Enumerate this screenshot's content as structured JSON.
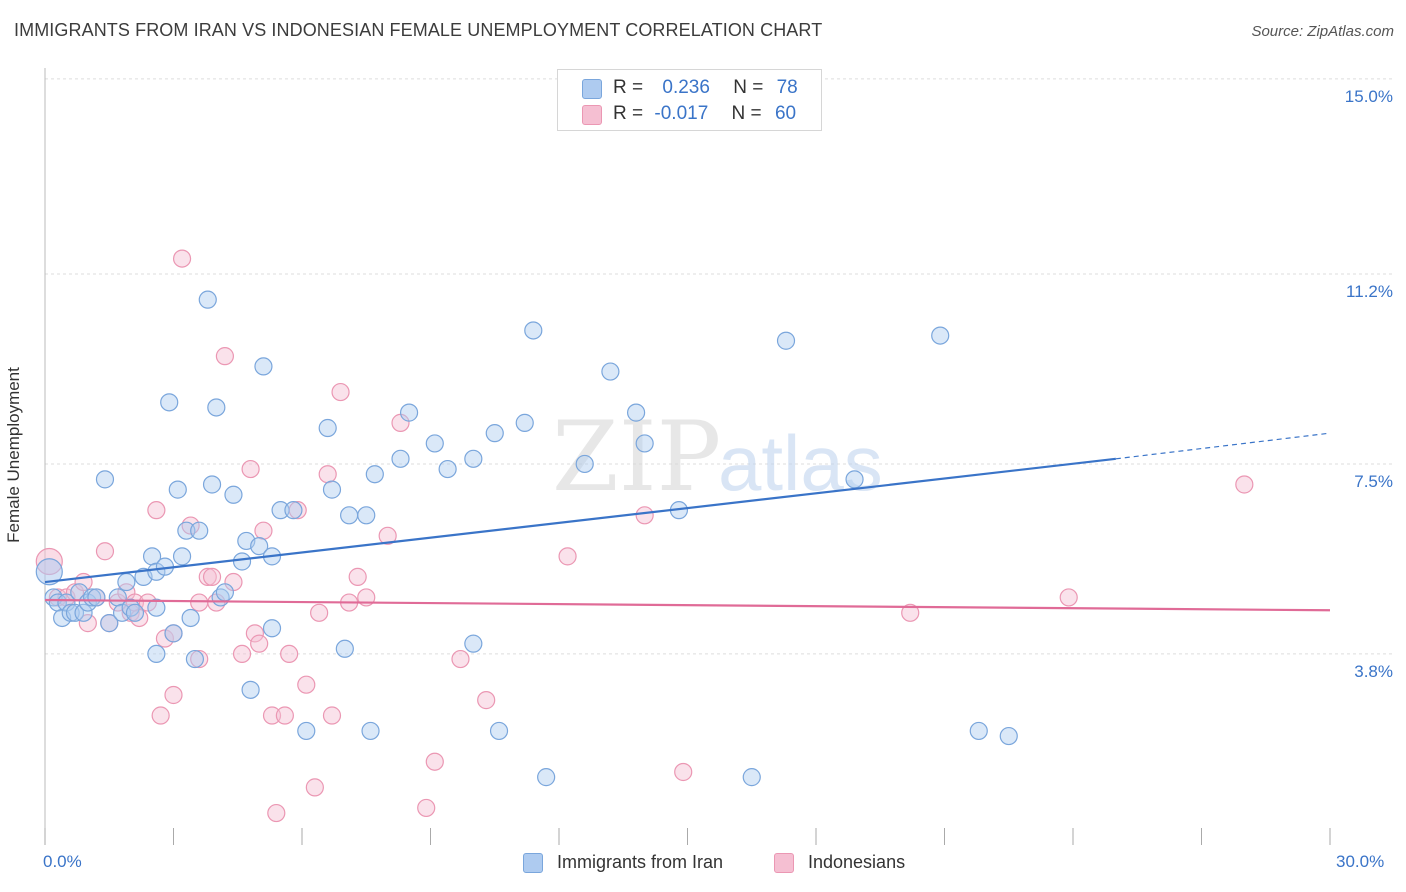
{
  "header": {
    "title": "IMMIGRANTS FROM IRAN VS INDONESIAN FEMALE UNEMPLOYMENT CORRELATION CHART",
    "source": "Source: ZipAtlas.com"
  },
  "watermark": {
    "zip": "ZIP",
    "atlas": "atlas"
  },
  "legend": {
    "rows": [
      {
        "r_label": "R =",
        "r_value": "0.236",
        "n_label": "N =",
        "n_value": "78"
      },
      {
        "r_label": "R =",
        "r_value": "-0.017",
        "n_label": "N =",
        "n_value": "60"
      }
    ]
  },
  "colors": {
    "blue_fill": "#aecbf0",
    "blue_stroke": "#7aa6dc",
    "blue_line": "#3a74c8",
    "pink_fill": "#f5bfd2",
    "pink_stroke": "#eb97b3",
    "pink_line": "#e06b97",
    "grid": "#dddddd",
    "axis_text": "#3a74c8"
  },
  "chart_data": {
    "type": "scatter",
    "title": "IMMIGRANTS FROM IRAN VS INDONESIAN FEMALE UNEMPLOYMENT CORRELATION CHART",
    "xlabel": "",
    "ylabel": "Female Unemployment",
    "xlim": [
      0,
      30
    ],
    "ylim": [
      0,
      15.75
    ],
    "x_tick_labels": [
      "0.0%",
      "30.0%"
    ],
    "y_ticks": [
      {
        "value": 3.8,
        "label": "3.8%"
      },
      {
        "value": 7.5,
        "label": "7.5%"
      },
      {
        "value": 11.2,
        "label": "11.2%"
      },
      {
        "value": 15.0,
        "label": "15.0%"
      }
    ],
    "series": [
      {
        "name": "Immigrants from Iran",
        "r": 0.236,
        "n": 78,
        "trend": {
          "x0": 0,
          "y0": 5.2,
          "x1": 25.0,
          "y1": 7.6,
          "dashed_to_x": 30,
          "dashed_to_y": 8.1
        },
        "points": [
          [
            0.1,
            5.4
          ],
          [
            0.2,
            4.9
          ],
          [
            0.3,
            4.8
          ],
          [
            0.4,
            4.5
          ],
          [
            0.5,
            4.8
          ],
          [
            0.6,
            4.6
          ],
          [
            0.7,
            4.6
          ],
          [
            0.8,
            5.0
          ],
          [
            0.9,
            4.6
          ],
          [
            1.0,
            4.8
          ],
          [
            1.1,
            4.9
          ],
          [
            1.2,
            4.9
          ],
          [
            1.4,
            7.2
          ],
          [
            1.5,
            4.4
          ],
          [
            1.7,
            4.9
          ],
          [
            1.8,
            4.6
          ],
          [
            1.9,
            5.2
          ],
          [
            2.0,
            4.7
          ],
          [
            2.1,
            4.6
          ],
          [
            2.3,
            5.3
          ],
          [
            2.5,
            5.7
          ],
          [
            2.6,
            5.4
          ],
          [
            2.6,
            4.7
          ],
          [
            2.6,
            3.8
          ],
          [
            2.8,
            5.5
          ],
          [
            2.9,
            8.7
          ],
          [
            3.0,
            4.2
          ],
          [
            3.1,
            7.0
          ],
          [
            3.2,
            5.7
          ],
          [
            3.3,
            6.2
          ],
          [
            3.4,
            4.5
          ],
          [
            3.5,
            3.7
          ],
          [
            3.6,
            6.2
          ],
          [
            3.8,
            10.7
          ],
          [
            3.9,
            7.1
          ],
          [
            4.0,
            8.6
          ],
          [
            4.1,
            4.9
          ],
          [
            4.2,
            5.0
          ],
          [
            4.4,
            6.9
          ],
          [
            4.6,
            5.6
          ],
          [
            4.7,
            6.0
          ],
          [
            4.8,
            3.1
          ],
          [
            5.0,
            5.9
          ],
          [
            5.1,
            9.4
          ],
          [
            5.3,
            4.3
          ],
          [
            5.3,
            5.7
          ],
          [
            5.5,
            6.6
          ],
          [
            5.8,
            6.6
          ],
          [
            6.1,
            2.3
          ],
          [
            6.6,
            8.2
          ],
          [
            6.7,
            7.0
          ],
          [
            7.0,
            3.9
          ],
          [
            7.1,
            6.5
          ],
          [
            7.6,
            2.3
          ],
          [
            7.5,
            6.5
          ],
          [
            7.7,
            7.3
          ],
          [
            8.3,
            7.6
          ],
          [
            8.5,
            8.5
          ],
          [
            9.1,
            7.9
          ],
          [
            9.4,
            7.4
          ],
          [
            10.0,
            4.0
          ],
          [
            10.0,
            7.6
          ],
          [
            10.5,
            8.1
          ],
          [
            10.6,
            2.3
          ],
          [
            11.2,
            8.3
          ],
          [
            11.4,
            10.1
          ],
          [
            11.7,
            1.4
          ],
          [
            12.6,
            7.5
          ],
          [
            13.2,
            9.3
          ],
          [
            13.8,
            8.5
          ],
          [
            14.0,
            7.9
          ],
          [
            14.8,
            6.6
          ],
          [
            16.5,
            1.4
          ],
          [
            17.3,
            9.9
          ],
          [
            18.9,
            7.2
          ],
          [
            20.9,
            10.0
          ],
          [
            21.8,
            2.3
          ],
          [
            22.5,
            2.2
          ]
        ]
      },
      {
        "name": "Indonesians",
        "r": -0.017,
        "n": 60,
        "trend": {
          "x0": 0,
          "y0": 4.85,
          "x1": 30,
          "y1": 4.65
        },
        "points": [
          [
            0.1,
            5.6
          ],
          [
            0.3,
            4.9
          ],
          [
            0.5,
            4.9
          ],
          [
            0.7,
            5.0
          ],
          [
            0.9,
            5.2
          ],
          [
            1.0,
            4.4
          ],
          [
            1.2,
            4.9
          ],
          [
            1.4,
            5.8
          ],
          [
            1.5,
            4.4
          ],
          [
            1.7,
            4.8
          ],
          [
            1.9,
            5.0
          ],
          [
            2.0,
            4.6
          ],
          [
            2.1,
            4.8
          ],
          [
            2.2,
            4.5
          ],
          [
            2.4,
            4.8
          ],
          [
            2.6,
            6.6
          ],
          [
            2.7,
            2.6
          ],
          [
            2.8,
            4.1
          ],
          [
            3.0,
            4.2
          ],
          [
            3.0,
            3.0
          ],
          [
            3.2,
            11.5
          ],
          [
            3.4,
            6.3
          ],
          [
            3.6,
            4.8
          ],
          [
            3.6,
            3.7
          ],
          [
            3.8,
            5.3
          ],
          [
            3.9,
            5.3
          ],
          [
            4.0,
            4.8
          ],
          [
            4.2,
            9.6
          ],
          [
            4.4,
            5.2
          ],
          [
            4.6,
            3.8
          ],
          [
            4.8,
            7.4
          ],
          [
            4.9,
            4.2
          ],
          [
            5.0,
            4.0
          ],
          [
            5.1,
            6.2
          ],
          [
            5.3,
            2.6
          ],
          [
            5.4,
            0.7
          ],
          [
            5.6,
            2.6
          ],
          [
            5.7,
            3.8
          ],
          [
            5.9,
            6.6
          ],
          [
            6.1,
            3.2
          ],
          [
            6.3,
            1.2
          ],
          [
            6.4,
            4.6
          ],
          [
            6.6,
            7.3
          ],
          [
            6.7,
            2.6
          ],
          [
            6.9,
            8.9
          ],
          [
            7.1,
            4.8
          ],
          [
            7.3,
            5.3
          ],
          [
            7.5,
            4.9
          ],
          [
            8.0,
            6.1
          ],
          [
            8.3,
            8.3
          ],
          [
            8.9,
            0.8
          ],
          [
            9.1,
            1.7
          ],
          [
            9.7,
            3.7
          ],
          [
            10.3,
            2.9
          ],
          [
            12.2,
            5.7
          ],
          [
            14.0,
            6.5
          ],
          [
            14.9,
            1.5
          ],
          [
            20.2,
            4.6
          ],
          [
            23.9,
            4.9
          ],
          [
            28.0,
            7.1
          ]
        ]
      }
    ],
    "legend_placement": "top-center"
  }
}
